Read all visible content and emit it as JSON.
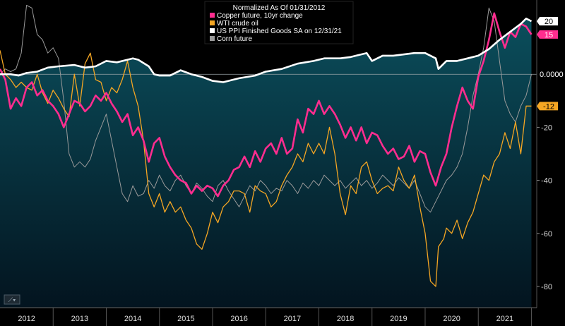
{
  "chart_data": {
    "type": "line",
    "title": "Normalized As Of 01/31/2012",
    "xlabel": "",
    "ylabel": "",
    "xlim": [
      2012.0,
      2022.1
    ],
    "ylim": [
      -88,
      28
    ],
    "x_ticks": [
      "2012",
      "2013",
      "2014",
      "2015",
      "2016",
      "2017",
      "2018",
      "2019",
      "2020",
      "2021"
    ],
    "y_ticks": [
      -20,
      -40,
      -60,
      -80
    ],
    "zero_label": "0.0000",
    "legend_position": "top-center",
    "series": [
      {
        "name": "US PPI Finished Goods SA on 12/31/21",
        "style": "area",
        "color": "#ffffff",
        "fill_top": "#0b4e5c",
        "fill_bottom": "#03141f",
        "last_value_label": "20",
        "badge_bg": "#ffffff",
        "badge_fg": "#000000",
        "x": [
          2012.0,
          2012.2,
          2012.35,
          2012.5,
          2012.7,
          2012.9,
          2013.1,
          2013.4,
          2013.6,
          2013.8,
          2014.0,
          2014.2,
          2014.4,
          2014.5,
          2014.6,
          2014.8,
          2014.9,
          2015.0,
          2015.2,
          2015.4,
          2015.6,
          2015.8,
          2016.0,
          2016.2,
          2016.5,
          2016.8,
          2017.0,
          2017.3,
          2017.6,
          2017.9,
          2018.1,
          2018.4,
          2018.6,
          2018.7,
          2018.9,
          2019.0,
          2019.2,
          2019.4,
          2019.6,
          2019.8,
          2020.0,
          2020.2,
          2020.25,
          2020.4,
          2020.6,
          2020.8,
          2021.0,
          2021.2,
          2021.4,
          2021.6,
          2021.8,
          2021.9,
          2022.0
        ],
        "y": [
          0,
          0,
          -0.5,
          0.5,
          1,
          2.5,
          3,
          3.5,
          2.5,
          3,
          5,
          4.5,
          5.5,
          6,
          5.5,
          3,
          0,
          -0.5,
          -0.5,
          1.5,
          0,
          -1,
          -2.5,
          -3,
          -1.5,
          -0.5,
          1,
          2,
          4,
          5,
          6,
          6,
          6.5,
          7,
          8,
          5,
          7,
          7,
          7.5,
          8,
          8,
          6,
          2,
          5,
          5,
          6,
          7,
          9.5,
          13,
          16,
          19,
          21,
          20
        ]
      },
      {
        "name": "Copper future, 10yr change",
        "style": "line",
        "color": "#ff2d8f",
        "last_value_label": "15",
        "badge_bg": "#ff2d8f",
        "badge_fg": "#ffffff",
        "x": [
          2012.0,
          2012.1,
          2012.2,
          2012.3,
          2012.4,
          2012.5,
          2012.6,
          2012.7,
          2012.8,
          2012.9,
          2013.0,
          2013.1,
          2013.2,
          2013.3,
          2013.4,
          2013.5,
          2013.6,
          2013.7,
          2013.8,
          2013.9,
          2014.0,
          2014.1,
          2014.2,
          2014.3,
          2014.4,
          2014.5,
          2014.6,
          2014.7,
          2014.8,
          2014.9,
          2015.0,
          2015.1,
          2015.2,
          2015.3,
          2015.4,
          2015.5,
          2015.6,
          2015.7,
          2015.8,
          2015.9,
          2016.0,
          2016.1,
          2016.2,
          2016.3,
          2016.4,
          2016.5,
          2016.6,
          2016.7,
          2016.8,
          2016.9,
          2017.0,
          2017.1,
          2017.2,
          2017.3,
          2017.4,
          2017.5,
          2017.6,
          2017.7,
          2017.8,
          2017.9,
          2018.0,
          2018.1,
          2018.2,
          2018.3,
          2018.4,
          2018.5,
          2018.6,
          2018.7,
          2018.8,
          2018.9,
          2019.0,
          2019.1,
          2019.2,
          2019.3,
          2019.4,
          2019.5,
          2019.6,
          2019.7,
          2019.8,
          2019.9,
          2020.0,
          2020.1,
          2020.2,
          2020.3,
          2020.4,
          2020.5,
          2020.6,
          2020.7,
          2020.8,
          2020.9,
          2021.0,
          2021.1,
          2021.2,
          2021.3,
          2021.4,
          2021.5,
          2021.6,
          2021.7,
          2021.8,
          2021.9,
          2022.0
        ],
        "y": [
          2,
          -2,
          -13,
          -9,
          -12,
          -5,
          -3,
          -8,
          -6,
          -10,
          -12,
          -15,
          -20,
          -15,
          -10,
          -11,
          -14,
          -12,
          -8,
          -10,
          -7,
          -11,
          -14,
          -18,
          -15,
          -23,
          -20,
          -25,
          -33,
          -26,
          -24,
          -31,
          -35,
          -38,
          -40,
          -41,
          -45,
          -42,
          -44,
          -42,
          -43,
          -46,
          -42,
          -40,
          -36,
          -35,
          -31,
          -35,
          -29,
          -33,
          -28,
          -26,
          -30,
          -24,
          -30,
          -28,
          -17,
          -22,
          -13,
          -15,
          -10,
          -15,
          -12,
          -15,
          -19,
          -24,
          -20,
          -25,
          -20,
          -26,
          -22,
          -23,
          -27,
          -30,
          -28,
          -32,
          -31,
          -27,
          -33,
          -29,
          -30,
          -37,
          -42,
          -35,
          -30,
          -20,
          -12,
          -5,
          -10,
          -13,
          -1,
          5,
          13,
          23,
          16,
          10,
          16,
          14,
          19,
          18,
          15
        ]
      },
      {
        "name": "WTI crude oil",
        "style": "line",
        "color": "#f5a623",
        "last_value_label": "-12",
        "badge_bg": "#f5a623",
        "badge_fg": "#000000",
        "x": [
          2012.0,
          2012.1,
          2012.2,
          2012.3,
          2012.4,
          2012.5,
          2012.6,
          2012.7,
          2012.8,
          2012.9,
          2013.0,
          2013.1,
          2013.2,
          2013.3,
          2013.4,
          2013.5,
          2013.6,
          2013.7,
          2013.8,
          2013.9,
          2014.0,
          2014.1,
          2014.2,
          2014.3,
          2014.4,
          2014.5,
          2014.6,
          2014.7,
          2014.8,
          2014.9,
          2015.0,
          2015.1,
          2015.2,
          2015.3,
          2015.4,
          2015.5,
          2015.6,
          2015.7,
          2015.8,
          2015.9,
          2016.0,
          2016.1,
          2016.2,
          2016.3,
          2016.4,
          2016.5,
          2016.6,
          2016.7,
          2016.8,
          2016.9,
          2017.0,
          2017.1,
          2017.2,
          2017.3,
          2017.4,
          2017.5,
          2017.6,
          2017.7,
          2017.8,
          2017.9,
          2018.0,
          2018.1,
          2018.2,
          2018.3,
          2018.4,
          2018.5,
          2018.6,
          2018.7,
          2018.8,
          2018.9,
          2019.0,
          2019.1,
          2019.2,
          2019.3,
          2019.4,
          2019.5,
          2019.6,
          2019.7,
          2019.8,
          2019.9,
          2020.0,
          2020.1,
          2020.2,
          2020.25,
          2020.35,
          2020.4,
          2020.5,
          2020.6,
          2020.7,
          2020.8,
          2020.9,
          2021.0,
          2021.1,
          2021.2,
          2021.3,
          2021.4,
          2021.5,
          2021.6,
          2021.7,
          2021.8,
          2021.9,
          2022.0
        ],
        "y": [
          9,
          0,
          -2,
          -5,
          -3,
          -5,
          -6,
          0,
          -7,
          -11,
          -6,
          -9,
          -13,
          -16,
          0,
          -12,
          4,
          8,
          -2,
          -3,
          -10,
          -5,
          -7,
          -2,
          5,
          -5,
          -12,
          -25,
          -45,
          -50,
          -45,
          -52,
          -48,
          -52,
          -50,
          -55,
          -58,
          -64,
          -66,
          -60,
          -52,
          -56,
          -50,
          -48,
          -44,
          -44,
          -45,
          -52,
          -42,
          -44,
          -45,
          -50,
          -48,
          -42,
          -38,
          -35,
          -30,
          -33,
          -26,
          -30,
          -26,
          -30,
          -20,
          -30,
          -45,
          -53,
          -42,
          -45,
          -35,
          -33,
          -40,
          -45,
          -43,
          -42,
          -44,
          -35,
          -40,
          -43,
          -38,
          -50,
          -60,
          -78,
          -80,
          -65,
          -62,
          -58,
          -60,
          -55,
          -62,
          -56,
          -52,
          -45,
          -38,
          -40,
          -33,
          -30,
          -22,
          -28,
          -18,
          -30,
          -12,
          -12
        ]
      },
      {
        "name": "Corn future",
        "style": "line",
        "color": "#9a9a9a",
        "last_value_label": "",
        "badge_bg": "",
        "badge_fg": "",
        "x": [
          2012.0,
          2012.1,
          2012.2,
          2012.3,
          2012.4,
          2012.5,
          2012.6,
          2012.7,
          2012.8,
          2012.9,
          2013.0,
          2013.1,
          2013.2,
          2013.3,
          2013.4,
          2013.5,
          2013.6,
          2013.7,
          2013.8,
          2013.9,
          2014.0,
          2014.1,
          2014.2,
          2014.3,
          2014.4,
          2014.5,
          2014.6,
          2014.7,
          2014.8,
          2014.9,
          2015.0,
          2015.1,
          2015.2,
          2015.3,
          2015.4,
          2015.5,
          2015.6,
          2015.7,
          2015.8,
          2015.9,
          2016.0,
          2016.1,
          2016.2,
          2016.3,
          2016.4,
          2016.5,
          2016.6,
          2016.7,
          2016.8,
          2016.9,
          2017.0,
          2017.1,
          2017.2,
          2017.3,
          2017.4,
          2017.5,
          2017.6,
          2017.7,
          2017.8,
          2017.9,
          2018.0,
          2018.1,
          2018.2,
          2018.3,
          2018.4,
          2018.5,
          2018.6,
          2018.7,
          2018.8,
          2018.9,
          2019.0,
          2019.1,
          2019.2,
          2019.3,
          2019.4,
          2019.5,
          2019.6,
          2019.7,
          2019.8,
          2019.9,
          2020.0,
          2020.1,
          2020.2,
          2020.3,
          2020.4,
          2020.5,
          2020.6,
          2020.7,
          2020.8,
          2020.9,
          2021.0,
          2021.1,
          2021.2,
          2021.3,
          2021.4,
          2021.5,
          2021.6,
          2021.7,
          2021.8,
          2021.9,
          2022.0
        ],
        "y": [
          0,
          2,
          1,
          2,
          8,
          26,
          25,
          15,
          13,
          8,
          10,
          6,
          -10,
          -30,
          -35,
          -33,
          -35,
          -32,
          -25,
          -20,
          -15,
          -25,
          -35,
          -45,
          -48,
          -42,
          -46,
          -45,
          -40,
          -43,
          -38,
          -42,
          -44,
          -40,
          -38,
          -42,
          -45,
          -41,
          -43,
          -46,
          -48,
          -42,
          -40,
          -44,
          -47,
          -50,
          -46,
          -42,
          -44,
          -40,
          -42,
          -45,
          -43,
          -44,
          -40,
          -42,
          -45,
          -41,
          -43,
          -40,
          -42,
          -38,
          -40,
          -42,
          -40,
          -43,
          -41,
          -39,
          -42,
          -40,
          -43,
          -41,
          -38,
          -40,
          -42,
          -39,
          -41,
          -43,
          -40,
          -45,
          -50,
          -52,
          -48,
          -44,
          -40,
          -38,
          -35,
          -30,
          -20,
          -8,
          0,
          10,
          25,
          20,
          5,
          -10,
          -15,
          -18,
          -12,
          -8,
          0
        ]
      }
    ]
  },
  "ui": {
    "chart_type_button_glyph": "⟋▾"
  }
}
